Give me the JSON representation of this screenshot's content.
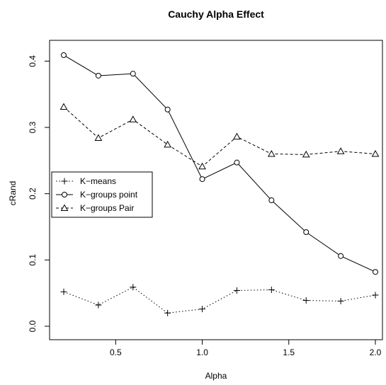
{
  "chart_data": {
    "type": "line",
    "title": "Cauchy Alpha Effect",
    "xlabel": "Alpha",
    "ylabel": "cRand",
    "x": [
      0.2,
      0.4,
      0.6,
      0.8,
      1.0,
      1.2,
      1.4,
      1.6,
      1.8,
      2.0
    ],
    "xlim": [
      0.2,
      2.0
    ],
    "ylim": [
      0.0,
      0.41
    ],
    "x_ticks": [
      0.5,
      1.0,
      1.5,
      2.0
    ],
    "x_tick_labels": [
      "0.5",
      "1.0",
      "1.5",
      "2.0"
    ],
    "y_ticks": [
      0.0,
      0.1,
      0.2,
      0.3,
      0.4
    ],
    "y_tick_labels": [
      "0.0",
      "0.1",
      "0.2",
      "0.3",
      "0.4"
    ],
    "grid": false,
    "legend_position": "left",
    "series": [
      {
        "name": "K−means",
        "marker": "plus",
        "line_style": "dotted",
        "values": [
          0.052,
          0.032,
          0.059,
          0.02,
          0.026,
          0.054,
          0.055,
          0.039,
          0.038,
          0.047
        ]
      },
      {
        "name": "K−groups point",
        "marker": "circle",
        "line_style": "solid",
        "values": [
          0.409,
          0.378,
          0.381,
          0.327,
          0.222,
          0.247,
          0.19,
          0.142,
          0.106,
          0.082
        ]
      },
      {
        "name": "K−groups Pair",
        "marker": "triangle",
        "line_style": "dashed",
        "values": [
          0.331,
          0.284,
          0.312,
          0.274,
          0.241,
          0.286,
          0.26,
          0.259,
          0.264,
          0.26
        ]
      }
    ]
  }
}
